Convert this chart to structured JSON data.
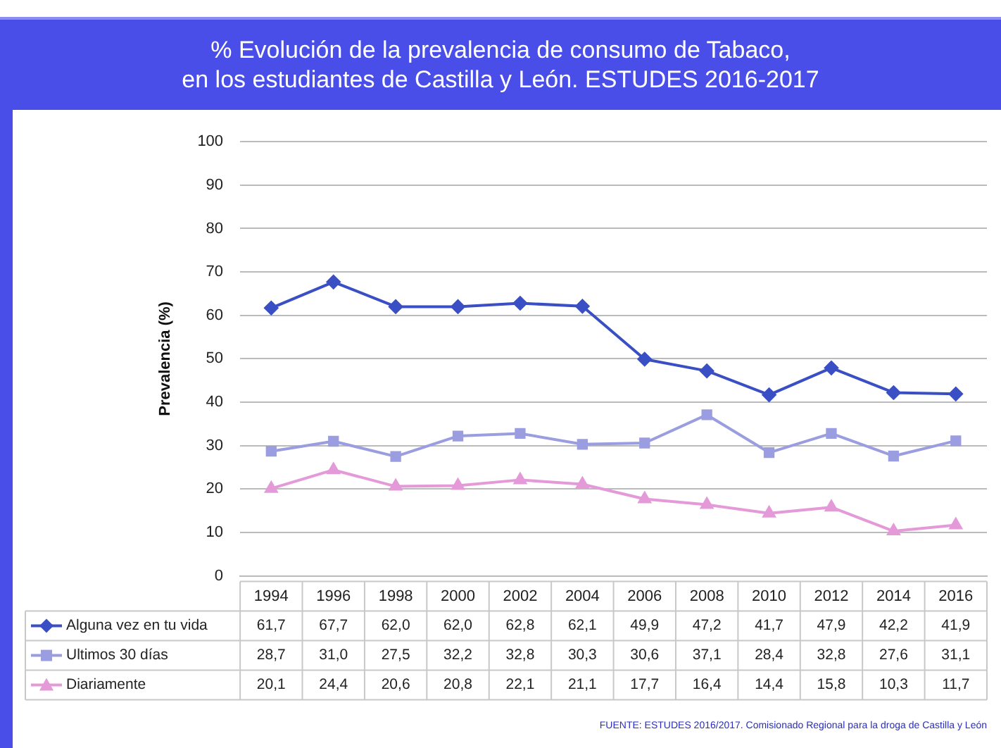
{
  "chart_data": {
    "type": "line",
    "title": "% Evolución de la prevalencia de consumo de Tabaco,\nen los estudiantes de Castilla y León. ESTUDES 2016-2017",
    "ylabel": "Prevalencia (%)",
    "categories": [
      "1994",
      "1996",
      "1998",
      "2000",
      "2002",
      "2004",
      "2006",
      "2008",
      "2010",
      "2012",
      "2014",
      "2016"
    ],
    "series": [
      {
        "name": "Alguna vez en tu vida",
        "color": "#3a4fc4",
        "marker": "diamond",
        "values": [
          61.7,
          67.7,
          62.0,
          62.0,
          62.8,
          62.1,
          49.9,
          47.2,
          41.7,
          47.9,
          42.2,
          41.9
        ],
        "value_labels": [
          "61,7",
          "67,7",
          "62,0",
          "62,0",
          "62,8",
          "62,1",
          "49,9",
          "47,2",
          "41,7",
          "47,9",
          "42,2",
          "41,9"
        ]
      },
      {
        "name": "Ultimos 30 días",
        "color": "#9a9ee0",
        "marker": "square",
        "values": [
          28.7,
          31.0,
          27.5,
          32.2,
          32.8,
          30.3,
          30.6,
          37.1,
          28.4,
          32.8,
          27.6,
          31.1
        ],
        "value_labels": [
          "28,7",
          "31,0",
          "27,5",
          "32,2",
          "32,8",
          "30,3",
          "30,6",
          "37,1",
          "28,4",
          "32,8",
          "27,6",
          "31,1"
        ]
      },
      {
        "name": "Diariamente",
        "color": "#e49ad8",
        "marker": "triangle",
        "values": [
          20.1,
          24.4,
          20.6,
          20.8,
          22.1,
          21.1,
          17.7,
          16.4,
          14.4,
          15.8,
          10.3,
          11.7
        ],
        "value_labels": [
          "20,1",
          "24,4",
          "20,6",
          "20,8",
          "22,1",
          "21,1",
          "17,7",
          "16,4",
          "14,4",
          "15,8",
          "10,3",
          "11,7"
        ]
      }
    ],
    "ylim": [
      0,
      100
    ],
    "yticks": [
      0,
      10,
      20,
      30,
      40,
      50,
      60,
      70,
      80,
      90,
      100
    ],
    "grid": "y",
    "legend": "bottom",
    "annotations": [
      "FUENTE: ESTUDES 2016/2017. Comisionado Regional para la droga de Castilla y León"
    ]
  }
}
